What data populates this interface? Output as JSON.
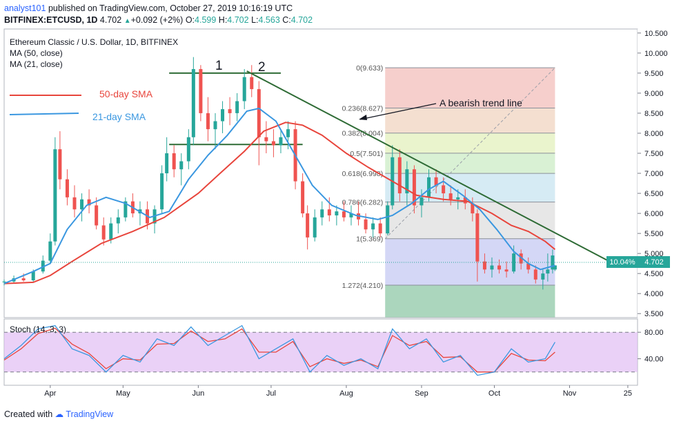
{
  "header": {
    "author": "analyst101",
    "published_text": "published on TradingView.com, October 27, 2019 10:16:19 UTC",
    "symbol_line": "BITFINEX:ETCUSD, 1D",
    "last": "4.702",
    "change": "+0.092 (+2%)",
    "open_label": "O:",
    "open": "4.599",
    "high_label": "H:",
    "high": "4.702",
    "low_label": "L:",
    "low": "4.563",
    "close_label": "C:",
    "close": "4.702"
  },
  "legend": {
    "title": "Ethereum Classic / U.S. Dollar, 1D, BITFINEX",
    "ma50": "MA (50, close)",
    "ma21": "MA (21, close)",
    "sma50_label": "50-day SMA",
    "sma21_label": "21-day SMA"
  },
  "annotations": {
    "peak1": "1",
    "peak2": "2",
    "trend_line": "A bearish trend line"
  },
  "price_badge": {
    "percent": "10.04%",
    "price": "4.702"
  },
  "stoch_label": "Stoch (14, 3, 3)",
  "footer": {
    "created_with": "Created with",
    "brand": "TradingView"
  },
  "colors": {
    "up": "#26a69a",
    "down": "#ef5350",
    "sma50": "#e8453c",
    "sma21": "#3a97e0",
    "trend": "#2e6b35",
    "stoch_k": "#3a97e0",
    "stoch_d": "#e8453c",
    "stoch_bg": "#e1bdf4"
  },
  "chart_data": {
    "type": "candlestick",
    "title": "Ethereum Classic / U.S. Dollar, 1D, BITFINEX",
    "y_ticks": [
      "10.500",
      "10.000",
      "9.500",
      "9.000",
      "8.500",
      "8.000",
      "7.500",
      "7.000",
      "6.500",
      "6.000",
      "5.500",
      "5.000",
      "4.500",
      "4.000",
      "3.500"
    ],
    "ylim": [
      3.4,
      10.6
    ],
    "x_ticks": [
      "Apr",
      "May",
      "Jun",
      "Jul",
      "Aug",
      "Sep",
      "Oct",
      "Nov",
      "25"
    ],
    "xlim": [
      "2019-03-13",
      "2019-11-29"
    ],
    "fibonacci": {
      "levels": [
        {
          "label": "0(9.633)",
          "value": 9.633,
          "color": "#f4c7c3"
        },
        {
          "label": "0.236(8.627)",
          "value": 8.627,
          "color": "#f2d9c8"
        },
        {
          "label": "0.382(8.004)",
          "value": 8.004,
          "color": "#e6f2c4"
        },
        {
          "label": "0.5(7.501)",
          "value": 7.501,
          "color": "#d2efcc"
        },
        {
          "label": "0.618(6.998)",
          "value": 6.998,
          "color": "#cfe8f2"
        },
        {
          "label": "0.786(6.282)",
          "value": 6.282,
          "color": "#e3e3e3"
        },
        {
          "label": "1(5.369)",
          "value": 5.369,
          "color": "#cdd0f5"
        },
        {
          "label": "1.272(4.210)",
          "value": 4.21,
          "color": "#9ccfb1"
        }
      ],
      "x_start": "2019-08-17",
      "x_end": "2019-10-26"
    },
    "horizontal_lines": [
      {
        "name": "resistance-top",
        "value": 9.5,
        "x_start": "2019-05-20",
        "x_end": "2019-07-05"
      },
      {
        "name": "support-mid",
        "value": 7.72,
        "x_start": "2019-05-20",
        "x_end": "2019-07-14"
      }
    ],
    "trend_line": {
      "x_start": "2019-06-21",
      "y_start": 9.55,
      "x_end": "2019-11-20",
      "y_end": 4.72
    },
    "sma50": [
      [
        "2019-03-13",
        4.25
      ],
      [
        "2019-03-25",
        4.28
      ],
      [
        "2019-04-01",
        4.45
      ],
      [
        "2019-04-10",
        4.8
      ],
      [
        "2019-04-22",
        5.25
      ],
      [
        "2019-05-05",
        5.55
      ],
      [
        "2019-05-18",
        5.9
      ],
      [
        "2019-06-01",
        6.5
      ],
      [
        "2019-06-10",
        7.0
      ],
      [
        "2019-06-20",
        7.55
      ],
      [
        "2019-06-28",
        8.05
      ],
      [
        "2019-07-07",
        8.27
      ],
      [
        "2019-07-14",
        8.2
      ],
      [
        "2019-07-22",
        7.95
      ],
      [
        "2019-08-01",
        7.5
      ],
      [
        "2019-08-10",
        7.15
      ],
      [
        "2019-08-20",
        6.8
      ],
      [
        "2019-08-30",
        6.45
      ],
      [
        "2019-09-10",
        6.35
      ],
      [
        "2019-09-20",
        6.3
      ],
      [
        "2019-09-30",
        6.0
      ],
      [
        "2019-10-08",
        5.7
      ],
      [
        "2019-10-15",
        5.55
      ],
      [
        "2019-10-22",
        5.3
      ],
      [
        "2019-10-26",
        5.1
      ]
    ],
    "sma21": [
      [
        "2019-03-13",
        4.25
      ],
      [
        "2019-03-25",
        4.55
      ],
      [
        "2019-04-01",
        4.75
      ],
      [
        "2019-04-08",
        5.6
      ],
      [
        "2019-04-16",
        6.2
      ],
      [
        "2019-04-24",
        6.4
      ],
      [
        "2019-05-02",
        6.25
      ],
      [
        "2019-05-12",
        5.9
      ],
      [
        "2019-05-20",
        6.05
      ],
      [
        "2019-05-28",
        6.85
      ],
      [
        "2019-06-05",
        7.45
      ],
      [
        "2019-06-13",
        7.95
      ],
      [
        "2019-06-21",
        8.55
      ],
      [
        "2019-06-26",
        8.62
      ],
      [
        "2019-07-03",
        8.3
      ],
      [
        "2019-07-10",
        7.55
      ],
      [
        "2019-07-18",
        6.7
      ],
      [
        "2019-07-26",
        6.2
      ],
      [
        "2019-08-05",
        5.95
      ],
      [
        "2019-08-14",
        5.85
      ],
      [
        "2019-08-20",
        5.95
      ],
      [
        "2019-08-28",
        6.25
      ],
      [
        "2019-09-04",
        6.6
      ],
      [
        "2019-09-10",
        6.8
      ],
      [
        "2019-09-18",
        6.45
      ],
      [
        "2019-09-25",
        6.1
      ],
      [
        "2019-10-02",
        5.6
      ],
      [
        "2019-10-09",
        5.05
      ],
      [
        "2019-10-15",
        4.75
      ],
      [
        "2019-10-20",
        4.6
      ],
      [
        "2019-10-26",
        4.7
      ]
    ],
    "candles": [
      [
        "2019-03-13",
        4.28,
        4.35,
        4.2,
        4.3
      ],
      [
        "2019-03-17",
        4.3,
        4.45,
        4.25,
        4.38
      ],
      [
        "2019-03-21",
        4.38,
        4.5,
        4.3,
        4.33
      ],
      [
        "2019-03-25",
        4.33,
        4.6,
        4.28,
        4.55
      ],
      [
        "2019-03-29",
        4.55,
        4.95,
        4.5,
        4.82
      ],
      [
        "2019-04-01",
        4.82,
        5.5,
        4.75,
        5.3
      ],
      [
        "2019-04-03",
        5.3,
        7.9,
        5.2,
        7.6
      ],
      [
        "2019-04-05",
        7.6,
        8.05,
        6.6,
        6.85
      ],
      [
        "2019-04-08",
        6.85,
        7.1,
        6.2,
        6.4
      ],
      [
        "2019-04-11",
        6.4,
        6.7,
        5.9,
        6.1
      ],
      [
        "2019-04-14",
        6.1,
        6.5,
        5.8,
        6.35
      ],
      [
        "2019-04-17",
        6.35,
        6.6,
        6.0,
        6.2
      ],
      [
        "2019-04-20",
        6.2,
        6.4,
        5.6,
        5.7
      ],
      [
        "2019-04-23",
        5.7,
        5.9,
        5.2,
        5.35
      ],
      [
        "2019-04-26",
        5.35,
        5.9,
        5.25,
        5.75
      ],
      [
        "2019-04-29",
        5.75,
        6.1,
        5.5,
        5.9
      ],
      [
        "2019-05-02",
        5.9,
        6.4,
        5.8,
        6.3
      ],
      [
        "2019-05-05",
        6.3,
        6.5,
        5.9,
        6.0
      ],
      [
        "2019-05-08",
        6.0,
        6.3,
        5.7,
        6.1
      ],
      [
        "2019-05-11",
        6.1,
        6.3,
        5.6,
        5.75
      ],
      [
        "2019-05-14",
        5.75,
        6.2,
        5.5,
        6.1
      ],
      [
        "2019-05-17",
        6.1,
        7.2,
        6.0,
        7.0
      ],
      [
        "2019-05-19",
        7.0,
        7.9,
        6.8,
        7.5
      ],
      [
        "2019-05-22",
        7.5,
        7.7,
        6.9,
        7.1
      ],
      [
        "2019-05-25",
        7.1,
        7.5,
        6.7,
        7.3
      ],
      [
        "2019-05-28",
        7.3,
        8.1,
        7.1,
        7.9
      ],
      [
        "2019-05-30",
        7.9,
        9.9,
        7.7,
        9.6
      ],
      [
        "2019-06-02",
        9.6,
        9.7,
        8.3,
        8.5
      ],
      [
        "2019-06-05",
        8.5,
        8.9,
        7.8,
        8.1
      ],
      [
        "2019-06-08",
        8.1,
        8.5,
        7.6,
        8.3
      ],
      [
        "2019-06-11",
        8.3,
        8.8,
        8.0,
        8.6
      ],
      [
        "2019-06-14",
        8.6,
        8.9,
        8.2,
        8.5
      ],
      [
        "2019-06-17",
        8.5,
        9.0,
        8.3,
        8.8
      ],
      [
        "2019-06-20",
        8.8,
        9.6,
        8.6,
        9.4
      ],
      [
        "2019-06-23",
        9.4,
        9.7,
        8.9,
        9.1
      ],
      [
        "2019-06-26",
        9.1,
        9.3,
        7.2,
        7.9
      ],
      [
        "2019-06-29",
        7.9,
        8.3,
        7.5,
        7.8
      ],
      [
        "2019-07-02",
        7.8,
        8.1,
        7.4,
        7.7
      ],
      [
        "2019-07-05",
        7.7,
        8.1,
        7.5,
        7.9
      ],
      [
        "2019-07-08",
        7.9,
        8.3,
        7.6,
        8.1
      ],
      [
        "2019-07-11",
        8.1,
        8.3,
        6.6,
        6.8
      ],
      [
        "2019-07-14",
        6.8,
        7.0,
        5.9,
        6.0
      ],
      [
        "2019-07-16",
        6.0,
        6.2,
        5.1,
        5.4
      ],
      [
        "2019-07-19",
        5.4,
        6.1,
        5.3,
        5.9
      ],
      [
        "2019-07-22",
        5.9,
        6.3,
        5.7,
        6.1
      ],
      [
        "2019-07-25",
        6.1,
        6.4,
        5.8,
        5.95
      ],
      [
        "2019-07-28",
        5.95,
        6.2,
        5.7,
        6.05
      ],
      [
        "2019-07-31",
        6.05,
        6.3,
        5.8,
        5.9
      ],
      [
        "2019-08-03",
        5.9,
        6.2,
        5.7,
        6.0
      ],
      [
        "2019-08-06",
        6.0,
        6.3,
        5.7,
        5.85
      ],
      [
        "2019-08-09",
        5.85,
        6.0,
        5.5,
        5.6
      ],
      [
        "2019-08-12",
        5.6,
        5.9,
        5.4,
        5.75
      ],
      [
        "2019-08-15",
        5.75,
        5.9,
        5.4,
        5.5
      ],
      [
        "2019-08-18",
        5.5,
        6.3,
        5.45,
        6.2
      ],
      [
        "2019-08-20",
        6.2,
        7.7,
        6.1,
        7.4
      ],
      [
        "2019-08-23",
        7.4,
        7.6,
        6.3,
        6.5
      ],
      [
        "2019-08-26",
        6.5,
        7.3,
        6.2,
        7.1
      ],
      [
        "2019-08-29",
        7.1,
        7.2,
        6.0,
        6.2
      ],
      [
        "2019-09-01",
        6.2,
        6.6,
        5.9,
        6.4
      ],
      [
        "2019-09-04",
        6.4,
        7.1,
        6.3,
        6.9
      ],
      [
        "2019-09-07",
        6.9,
        7.1,
        6.5,
        6.7
      ],
      [
        "2019-09-10",
        6.7,
        6.9,
        6.3,
        6.5
      ],
      [
        "2019-09-13",
        6.5,
        6.7,
        6.2,
        6.35
      ],
      [
        "2019-09-16",
        6.35,
        6.6,
        6.1,
        6.4
      ],
      [
        "2019-09-19",
        6.4,
        6.6,
        6.1,
        6.25
      ],
      [
        "2019-09-22",
        6.25,
        6.4,
        5.8,
        6.0
      ],
      [
        "2019-09-24",
        6.0,
        6.1,
        4.3,
        4.8
      ],
      [
        "2019-09-27",
        4.8,
        5.0,
        4.5,
        4.6
      ],
      [
        "2019-09-30",
        4.6,
        4.9,
        4.4,
        4.7
      ],
      [
        "2019-10-03",
        4.7,
        4.85,
        4.5,
        4.6
      ],
      [
        "2019-10-06",
        4.6,
        4.8,
        4.4,
        4.55
      ],
      [
        "2019-10-09",
        4.55,
        5.2,
        4.5,
        5.0
      ],
      [
        "2019-10-12",
        5.0,
        5.1,
        4.6,
        4.75
      ],
      [
        "2019-10-15",
        4.75,
        4.9,
        4.5,
        4.6
      ],
      [
        "2019-10-18",
        4.6,
        4.7,
        4.25,
        4.35
      ],
      [
        "2019-10-21",
        4.35,
        4.6,
        4.1,
        4.5
      ],
      [
        "2019-10-23",
        4.5,
        5.0,
        4.3,
        4.6
      ],
      [
        "2019-10-25",
        4.6,
        5.1,
        4.5,
        4.95
      ],
      [
        "2019-10-26",
        4.599,
        4.702,
        4.563,
        4.702
      ]
    ],
    "stoch": {
      "lim": [
        0,
        100
      ],
      "y_ticks": [
        "80.00",
        "40.00"
      ],
      "bands": [
        80,
        20
      ],
      "k": [
        [
          "2019-03-13",
          40
        ],
        [
          "2019-03-20",
          60
        ],
        [
          "2019-03-27",
          85
        ],
        [
          "2019-04-03",
          90
        ],
        [
          "2019-04-10",
          55
        ],
        [
          "2019-04-17",
          45
        ],
        [
          "2019-04-24",
          20
        ],
        [
          "2019-05-01",
          45
        ],
        [
          "2019-05-08",
          35
        ],
        [
          "2019-05-15",
          70
        ],
        [
          "2019-05-22",
          60
        ],
        [
          "2019-05-29",
          88
        ],
        [
          "2019-06-05",
          60
        ],
        [
          "2019-06-12",
          75
        ],
        [
          "2019-06-19",
          90
        ],
        [
          "2019-06-26",
          40
        ],
        [
          "2019-07-03",
          55
        ],
        [
          "2019-07-10",
          70
        ],
        [
          "2019-07-17",
          20
        ],
        [
          "2019-07-24",
          45
        ],
        [
          "2019-07-31",
          30
        ],
        [
          "2019-08-07",
          40
        ],
        [
          "2019-08-14",
          25
        ],
        [
          "2019-08-20",
          85
        ],
        [
          "2019-08-27",
          55
        ],
        [
          "2019-09-03",
          70
        ],
        [
          "2019-09-10",
          35
        ],
        [
          "2019-09-17",
          45
        ],
        [
          "2019-09-24",
          15
        ],
        [
          "2019-10-01",
          20
        ],
        [
          "2019-10-08",
          55
        ],
        [
          "2019-10-15",
          35
        ],
        [
          "2019-10-22",
          40
        ],
        [
          "2019-10-26",
          65
        ]
      ],
      "d": [
        [
          "2019-03-13",
          38
        ],
        [
          "2019-03-20",
          55
        ],
        [
          "2019-03-27",
          78
        ],
        [
          "2019-04-03",
          86
        ],
        [
          "2019-04-10",
          62
        ],
        [
          "2019-04-17",
          48
        ],
        [
          "2019-04-24",
          25
        ],
        [
          "2019-05-01",
          40
        ],
        [
          "2019-05-08",
          38
        ],
        [
          "2019-05-15",
          62
        ],
        [
          "2019-05-22",
          63
        ],
        [
          "2019-05-29",
          82
        ],
        [
          "2019-06-05",
          66
        ],
        [
          "2019-06-12",
          70
        ],
        [
          "2019-06-19",
          85
        ],
        [
          "2019-06-26",
          50
        ],
        [
          "2019-07-03",
          50
        ],
        [
          "2019-07-10",
          66
        ],
        [
          "2019-07-17",
          28
        ],
        [
          "2019-07-24",
          40
        ],
        [
          "2019-07-31",
          33
        ],
        [
          "2019-08-07",
          38
        ],
        [
          "2019-08-14",
          28
        ],
        [
          "2019-08-20",
          75
        ],
        [
          "2019-08-27",
          60
        ],
        [
          "2019-09-03",
          66
        ],
        [
          "2019-09-10",
          42
        ],
        [
          "2019-09-17",
          43
        ],
        [
          "2019-09-24",
          20
        ],
        [
          "2019-10-01",
          20
        ],
        [
          "2019-10-08",
          48
        ],
        [
          "2019-10-15",
          38
        ],
        [
          "2019-10-22",
          37
        ],
        [
          "2019-10-26",
          50
        ]
      ]
    }
  }
}
